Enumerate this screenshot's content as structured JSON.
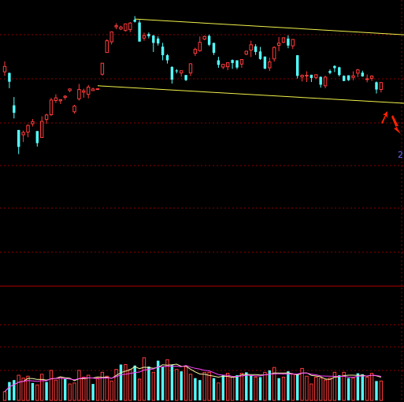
{
  "chart_data": {
    "type": "candlestick",
    "colors": {
      "background": "#000000",
      "up": "#ff3b3b",
      "down": "#54ffff",
      "channel": "#f2f24a",
      "grid": "#8a0000",
      "divider": "#b00000",
      "vol_ma_short": "#f2f2a0",
      "vol_ma_long": "#ff44ff",
      "arrow": "#ff2200",
      "edge_label": "#6a6aff"
    },
    "price_axis": {
      "min": 0,
      "max": 100,
      "grid": true
    },
    "volume_axis": {
      "min": 0,
      "max": 100
    },
    "edge_label": "2",
    "candles": [
      [
        73.2,
        75.2,
        71.7,
        77.1
      ],
      [
        72.8,
        69.5,
        67.1,
        72.9
      ],
      [
        60.7,
        57.9,
        55.8,
        63.8
      ],
      [
        51.5,
        45.2,
        42.5,
        51.5
      ],
      [
        49.7,
        50.6,
        47.0,
        51.3
      ],
      [
        50.7,
        53.2,
        48.8,
        53.6
      ],
      [
        53.8,
        54.6,
        52.8,
        55.6
      ],
      [
        51.1,
        46.6,
        45.3,
        51.1
      ],
      [
        48.7,
        54.7,
        48.6,
        56.6
      ],
      [
        55.4,
        57.1,
        53.8,
        57.6
      ],
      [
        57.2,
        62.7,
        56.7,
        63.5
      ],
      [
        62.5,
        63.5,
        61.6,
        64.8
      ],
      [
        62.4,
        62.8,
        61.2,
        63.0
      ],
      [
        63.7,
        64.1,
        62.8,
        64.5
      ],
      [
        66.2,
        66.8,
        65.6,
        67.0
      ],
      [
        58.3,
        60.4,
        57.6,
        60.9
      ],
      [
        63.1,
        66.6,
        62.5,
        68.7
      ],
      [
        65.6,
        66.1,
        63.5,
        66.9
      ],
      [
        64.8,
        67.5,
        63.3,
        68.3
      ],
      [
        66.2,
        66.8,
        66.1,
        67.3
      ],
      [
        66.6,
        66.9,
        66.4,
        66.9
      ],
      [
        72.3,
        76.4,
        71.8,
        76.6
      ],
      [
        80.4,
        84.8,
        80.4,
        85.4
      ],
      [
        84.4,
        88.1,
        83.4,
        88.1
      ],
      [
        90.0,
        90.4,
        89.1,
        91.3
      ],
      [
        89.2,
        89.9,
        88.8,
        90.4
      ],
      [
        88.6,
        91.1,
        88.2,
        91.1
      ],
      [
        89.0,
        91.4,
        88.0,
        91.8
      ],
      [
        92.6,
        91.9,
        91.6,
        94.0
      ],
      [
        91.6,
        84.5,
        84.4,
        92.5
      ],
      [
        85.8,
        86.7,
        84.8,
        87.8
      ],
      [
        87.3,
        86.5,
        85.7,
        87.9
      ],
      [
        86.7,
        84.0,
        80.6,
        87.0
      ],
      [
        85.6,
        83.8,
        83.0,
        86.4
      ],
      [
        82.6,
        79.4,
        77.5,
        84.0
      ],
      [
        79.4,
        77.5,
        76.3,
        79.8
      ],
      [
        75.0,
        70.3,
        68.8,
        75.3
      ],
      [
        73.7,
        73.4,
        72.6,
        74.2
      ],
      [
        72.8,
        73.6,
        71.4,
        73.6
      ],
      [
        72.0,
        70.1,
        69.8,
        72.0
      ],
      [
        72.8,
        76.2,
        71.6,
        76.4
      ],
      [
        80.1,
        81.6,
        79.1,
        82.2
      ],
      [
        81.1,
        84.2,
        80.7,
        86.4
      ],
      [
        85.4,
        86.4,
        85.0,
        86.7
      ],
      [
        86.6,
        83.3,
        82.8,
        87.1
      ],
      [
        84.0,
        80.3,
        79.5,
        84.0
      ],
      [
        77.5,
        75.8,
        74.7,
        78.8
      ],
      [
        75.0,
        76.0,
        74.2,
        76.0
      ],
      [
        75.1,
        76.6,
        73.8,
        76.6
      ],
      [
        77.6,
        76.5,
        74.3,
        77.8
      ],
      [
        77.5,
        74.8,
        74.2,
        77.5
      ],
      [
        76.1,
        77.8,
        74.7,
        77.9
      ],
      [
        79.8,
        80.9,
        79.4,
        81.1
      ],
      [
        81.3,
        83.3,
        78.7,
        84.8
      ],
      [
        82.7,
        80.6,
        79.5,
        83.5
      ],
      [
        80.8,
        78.0,
        77.7,
        82.5
      ],
      [
        78.9,
        74.4,
        74.2,
        78.9
      ],
      [
        74.7,
        76.9,
        73.5,
        78.5
      ],
      [
        78.0,
        82.3,
        77.0,
        82.7
      ],
      [
        83.1,
        83.9,
        80.9,
        86.2
      ],
      [
        84.2,
        85.9,
        83.9,
        86.1
      ],
      [
        85.6,
        83.0,
        82.0,
        86.8
      ],
      [
        82.9,
        85.3,
        81.7,
        85.3
      ],
      [
        79.4,
        71.7,
        70.7,
        79.4
      ],
      [
        71.3,
        71.9,
        69.6,
        72.2
      ],
      [
        71.7,
        71.9,
        69.4,
        73.4
      ],
      [
        72.1,
        70.9,
        69.4,
        72.1
      ],
      [
        71.1,
        72.1,
        70.5,
        72.3
      ],
      [
        71.3,
        68.4,
        67.3,
        71.5
      ],
      [
        68.0,
        71.2,
        67.1,
        71.8
      ],
      [
        73.5,
        72.8,
        72.3,
        74.1
      ],
      [
        75.4,
        74.6,
        73.1,
        75.6
      ],
      [
        74.9,
        72.0,
        71.5,
        75.1
      ],
      [
        71.7,
        69.8,
        69.7,
        71.9
      ],
      [
        71.9,
        70.1,
        69.8,
        71.9
      ],
      [
        71.1,
        71.7,
        70.0,
        73.4
      ],
      [
        72.7,
        73.9,
        71.2,
        74.3
      ],
      [
        72.9,
        71.5,
        71.4,
        73.6
      ],
      [
        70.5,
        70.6,
        69.3,
        72.2
      ],
      [
        70.8,
        71.6,
        69.8,
        71.9
      ],
      [
        69.3,
        66.6,
        65.1,
        69.6
      ],
      [
        66.6,
        69.2,
        65.5,
        69.4
      ]
    ],
    "volume": [
      [
        9,
        1
      ],
      [
        19,
        0
      ],
      [
        21,
        0
      ],
      [
        26,
        1
      ],
      [
        23,
        1
      ],
      [
        25,
        1
      ],
      [
        18,
        0
      ],
      [
        16,
        1
      ],
      [
        27,
        1
      ],
      [
        19,
        0
      ],
      [
        31,
        1
      ],
      [
        21,
        1
      ],
      [
        24,
        1
      ],
      [
        22,
        0
      ],
      [
        17,
        1
      ],
      [
        18,
        1
      ],
      [
        31,
        1
      ],
      [
        24,
        1
      ],
      [
        26,
        1
      ],
      [
        17,
        0
      ],
      [
        23,
        1
      ],
      [
        29,
        1
      ],
      [
        25,
        1
      ],
      [
        20,
        1
      ],
      [
        32,
        1
      ],
      [
        37,
        0
      ],
      [
        37,
        1
      ],
      [
        32,
        1
      ],
      [
        36,
        0
      ],
      [
        22,
        1
      ],
      [
        44,
        1
      ],
      [
        35,
        0
      ],
      [
        29,
        1
      ],
      [
        41,
        0
      ],
      [
        35,
        0
      ],
      [
        42,
        1
      ],
      [
        37,
        0
      ],
      [
        32,
        1
      ],
      [
        30,
        0
      ],
      [
        35,
        1
      ],
      [
        27,
        1
      ],
      [
        23,
        0
      ],
      [
        21,
        0
      ],
      [
        29,
        1
      ],
      [
        29,
        1
      ],
      [
        23,
        0
      ],
      [
        18,
        1
      ],
      [
        26,
        0
      ],
      [
        28,
        1
      ],
      [
        24,
        1
      ],
      [
        26,
        0
      ],
      [
        28,
        1
      ],
      [
        29,
        0
      ],
      [
        26,
        0
      ],
      [
        24,
        1
      ],
      [
        24,
        0
      ],
      [
        29,
        1
      ],
      [
        31,
        0
      ],
      [
        34,
        1
      ],
      [
        23,
        0
      ],
      [
        24,
        1
      ],
      [
        30,
        0
      ],
      [
        27,
        1
      ],
      [
        27,
        0
      ],
      [
        33,
        1
      ],
      [
        25,
        1
      ],
      [
        17,
        1
      ],
      [
        24,
        1
      ],
      [
        23,
        1
      ],
      [
        21,
        1
      ],
      [
        23,
        1
      ],
      [
        29,
        1
      ],
      [
        26,
        0
      ],
      [
        29,
        1
      ],
      [
        23,
        0
      ],
      [
        23,
        1
      ],
      [
        28,
        0
      ],
      [
        27,
        0
      ],
      [
        24,
        1
      ],
      [
        28,
        1
      ],
      [
        20,
        0
      ],
      [
        20,
        1
      ]
    ],
    "channel_lines": [
      {
        "from": [
          28,
          92.9
        ],
        "to": [
          112,
          84.4
        ]
      },
      {
        "from": [
          20,
          68.0
        ],
        "to": [
          112,
          58.9
        ]
      }
    ]
  }
}
